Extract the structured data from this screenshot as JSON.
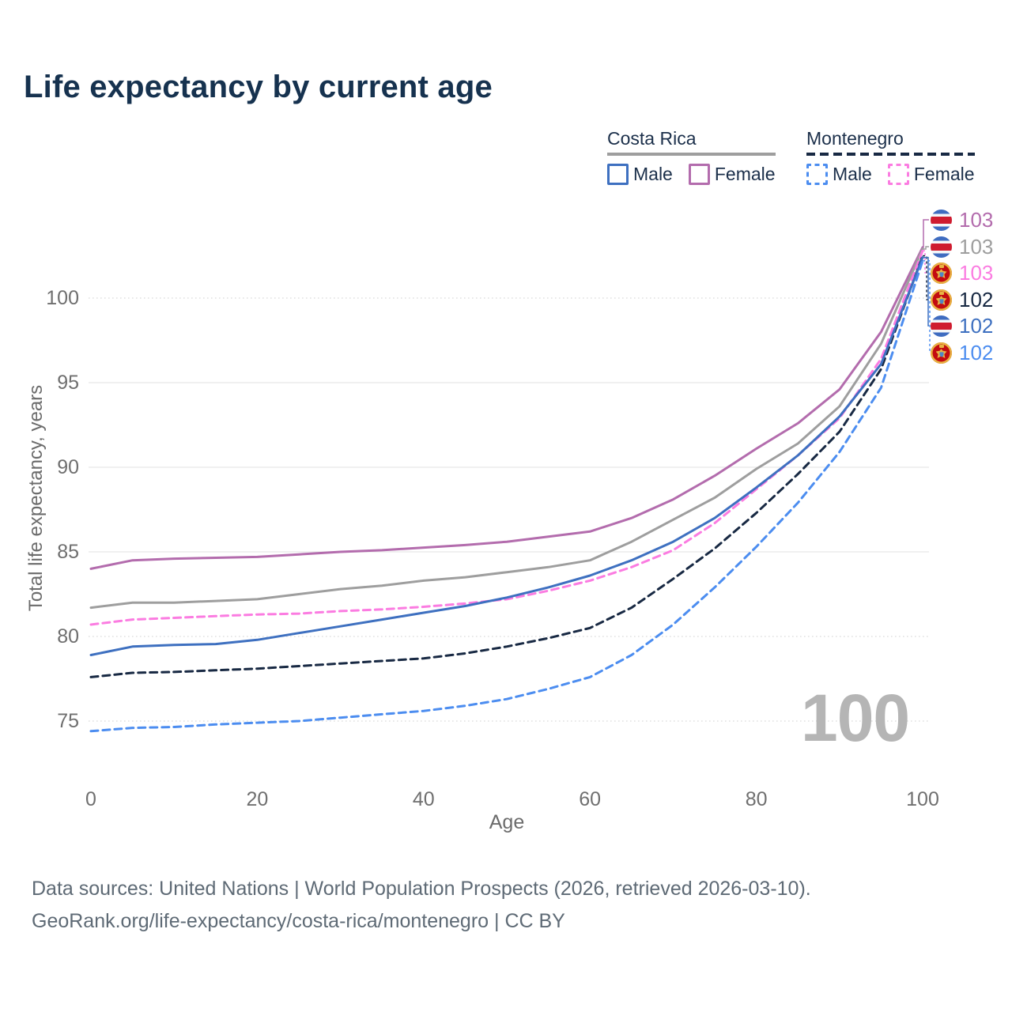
{
  "title": "Life expectancy by current age",
  "legend": {
    "groups": [
      {
        "country": "Costa Rica",
        "line_style": "solid",
        "underline_color": "#9e9e9e",
        "items": [
          {
            "label": "Male",
            "color": "#3e70c0",
            "dashed": false
          },
          {
            "label": "Female",
            "color": "#b36cad",
            "dashed": false
          }
        ]
      },
      {
        "country": "Montenegro",
        "line_style": "dashed",
        "underline_color": "#182943",
        "items": [
          {
            "label": "Male",
            "color": "#4c8df0",
            "dashed": true
          },
          {
            "label": "Female",
            "color": "#fb7ce1",
            "dashed": true
          }
        ]
      }
    ]
  },
  "chart_data": {
    "type": "line",
    "title": "Life expectancy by current age",
    "xlabel": "Age",
    "ylabel": "Total life expectancy, years",
    "x": [
      0,
      5,
      10,
      15,
      20,
      25,
      30,
      35,
      40,
      45,
      50,
      55,
      60,
      65,
      70,
      75,
      80,
      85,
      90,
      95,
      100
    ],
    "xticks": [
      0,
      20,
      40,
      60,
      80,
      100
    ],
    "yticks": [
      75,
      80,
      85,
      90,
      95,
      100
    ],
    "solid_gridlines": [
      85,
      90,
      95
    ],
    "dotted_gridlines": [
      75,
      80,
      100
    ],
    "xlim": [
      0,
      100
    ],
    "ylim": [
      73,
      104
    ],
    "grid": "horizontal",
    "legend_position": "top-right",
    "series": [
      {
        "name": "Costa Rica — Female",
        "country": "Costa Rica",
        "sex": "Female",
        "color": "#b36cad",
        "dashed": false,
        "flag": "cr",
        "end_label": "103",
        "values": [
          84.0,
          84.5,
          84.6,
          84.65,
          84.7,
          84.85,
          85.0,
          85.1,
          85.25,
          85.4,
          85.6,
          85.9,
          86.2,
          87.0,
          88.1,
          89.5,
          91.1,
          92.6,
          94.6,
          98.0,
          103.0
        ]
      },
      {
        "name": "Costa Rica — Both sexes",
        "country": "Costa Rica",
        "sex": "Both",
        "color": "#9e9e9e",
        "dashed": false,
        "flag": "cr",
        "end_label": "103",
        "values": [
          81.7,
          82.0,
          82.0,
          82.1,
          82.2,
          82.5,
          82.8,
          83.0,
          83.3,
          83.5,
          83.8,
          84.1,
          84.5,
          85.6,
          86.9,
          88.2,
          89.9,
          91.4,
          93.6,
          97.3,
          102.9
        ]
      },
      {
        "name": "Montenegro — Female",
        "country": "Montenegro",
        "sex": "Female",
        "color": "#fb7ce1",
        "dashed": true,
        "flag": "me",
        "end_label": "103",
        "values": [
          80.7,
          81.0,
          81.1,
          81.2,
          81.3,
          81.35,
          81.5,
          81.6,
          81.75,
          81.95,
          82.2,
          82.7,
          83.3,
          84.1,
          85.1,
          86.7,
          88.7,
          90.7,
          92.9,
          96.4,
          102.8
        ]
      },
      {
        "name": "Montenegro — Both sexes",
        "country": "Montenegro",
        "sex": "Both",
        "color": "#182943",
        "dashed": true,
        "flag": "me",
        "end_label": "102",
        "values": [
          77.6,
          77.85,
          77.9,
          78.0,
          78.1,
          78.25,
          78.4,
          78.55,
          78.7,
          79.0,
          79.4,
          79.9,
          80.5,
          81.7,
          83.4,
          85.2,
          87.3,
          89.6,
          92.1,
          95.8,
          102.5
        ]
      },
      {
        "name": "Costa Rica — Male",
        "country": "Costa Rica",
        "sex": "Male",
        "color": "#3e70c0",
        "dashed": false,
        "flag": "cr",
        "end_label": "102",
        "values": [
          78.9,
          79.4,
          79.5,
          79.55,
          79.8,
          80.2,
          80.6,
          81.0,
          81.4,
          81.8,
          82.3,
          82.9,
          83.6,
          84.5,
          85.6,
          87.0,
          88.8,
          90.7,
          93.0,
          96.1,
          102.4
        ]
      },
      {
        "name": "Montenegro — Male",
        "country": "Montenegro",
        "sex": "Male",
        "color": "#4c8df0",
        "dashed": true,
        "flag": "me",
        "end_label": "102",
        "values": [
          74.4,
          74.6,
          74.65,
          74.8,
          74.9,
          75.0,
          75.2,
          75.4,
          75.6,
          75.9,
          76.3,
          76.9,
          77.6,
          78.9,
          80.7,
          82.9,
          85.3,
          87.9,
          90.9,
          94.7,
          102.2
        ]
      }
    ]
  },
  "watermark": "100",
  "footer": {
    "line1": "Data sources: United Nations | World Population Prospects (2026, retrieved 2026-03-10).",
    "line2": "GeoRank.org/life-expectancy/costa-rica/montenegro | CC BY"
  }
}
